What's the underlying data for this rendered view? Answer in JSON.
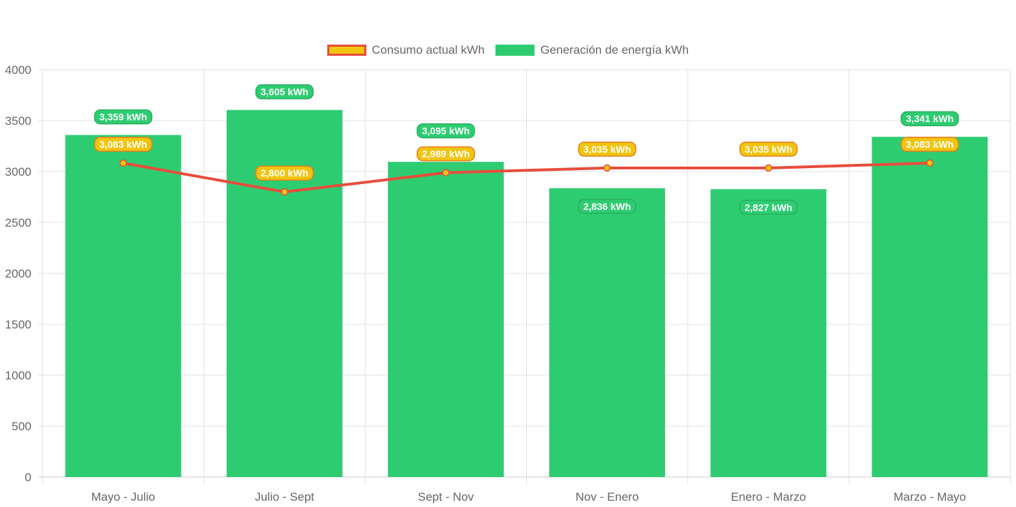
{
  "chart_data": {
    "type": "bar",
    "categories": [
      "Mayo - Julio",
      "Julio - Sept",
      "Sept - Nov",
      "Nov - Enero",
      "Enero - Marzo",
      "Marzo - Mayo"
    ],
    "series": [
      {
        "name": "Consumo actual kWh",
        "type": "line",
        "values": [
          3083,
          2800,
          2989,
          3035,
          3035,
          3083
        ],
        "labels": [
          "3,083 kWh",
          "2,800 kWh",
          "2,989 kWh",
          "3,035 kWh",
          "3,035 kWh",
          "3,083 kWh"
        ],
        "line_color": "#e74c3c",
        "fill_color": "#f1c40f"
      },
      {
        "name": "Generación de energía kWh",
        "type": "bar",
        "values": [
          3359,
          3605,
          3095,
          2836,
          2827,
          3341
        ],
        "labels": [
          "3,359 kWh",
          "3,605 kWh",
          "3,095 kWh",
          "2,836 kWh",
          "2,827 kWh",
          "3,341 kWh"
        ],
        "color": "#2ecc71"
      }
    ],
    "yticks": [
      "0",
      "500",
      "1000",
      "1500",
      "2000",
      "2500",
      "3000",
      "3500",
      "4000"
    ],
    "ylim": [
      0,
      4000
    ],
    "grid": true,
    "legend": "top-center"
  }
}
